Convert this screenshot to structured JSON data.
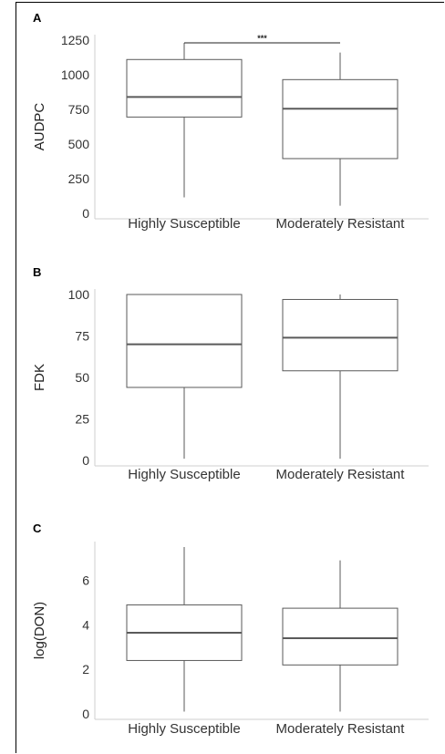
{
  "chart_data": [
    {
      "type": "box",
      "panel": "A",
      "ylabel": "AUDPC",
      "yticks": [
        0,
        250,
        500,
        750,
        1000,
        1250
      ],
      "ylim": [
        0,
        1250
      ],
      "categories": [
        "Highly Susceptible",
        "Moderately Resistant"
      ],
      "boxes": [
        {
          "min": 115,
          "q1": 695,
          "median": 840,
          "q3": 1110,
          "max": 1230
        },
        {
          "min": 55,
          "q1": 395,
          "median": 755,
          "q3": 965,
          "max": 1160
        }
      ],
      "significance": {
        "label": "***",
        "y": 1230
      }
    },
    {
      "type": "box",
      "panel": "B",
      "ylabel": "FDK",
      "yticks": [
        0,
        25,
        50,
        75,
        100
      ],
      "ylim": [
        0,
        100
      ],
      "categories": [
        "Highly Susceptible",
        "Moderately Resistant"
      ],
      "boxes": [
        {
          "min": 1,
          "q1": 44,
          "median": 70,
          "q3": 100,
          "max": 100
        },
        {
          "min": 1,
          "q1": 54,
          "median": 74,
          "q3": 97,
          "max": 100
        }
      ]
    },
    {
      "type": "box",
      "panel": "C",
      "ylabel": "log(DON)",
      "yticks": [
        0,
        2,
        4,
        6
      ],
      "ylim": [
        0,
        7.5
      ],
      "categories": [
        "Highly Susceptible",
        "Moderately Resistant"
      ],
      "boxes": [
        {
          "min": 0.1,
          "q1": 2.4,
          "median": 3.65,
          "q3": 4.9,
          "max": 7.5
        },
        {
          "min": 0.1,
          "q1": 2.2,
          "median": 3.4,
          "q3": 4.75,
          "max": 6.9
        }
      ]
    }
  ]
}
